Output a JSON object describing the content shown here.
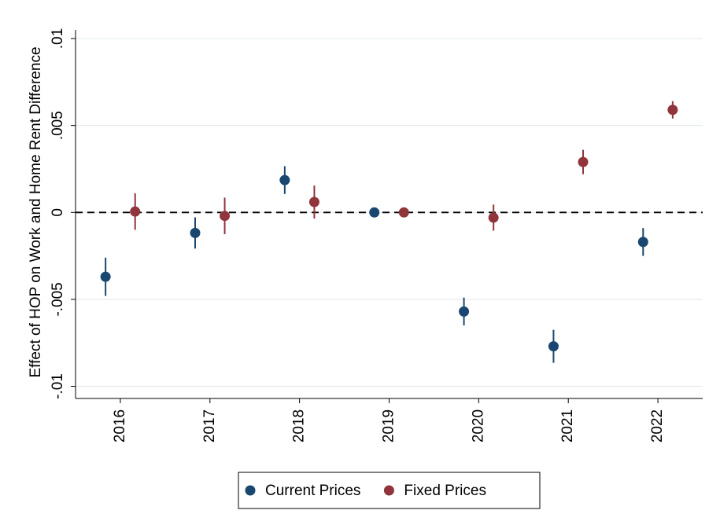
{
  "chart_data": {
    "type": "coefplot",
    "y_label": "Effect of HOP on Work and Home Rent Difference",
    "categories": [
      "2016",
      "2017",
      "2018",
      "2019",
      "2020",
      "2021",
      "2022"
    ],
    "series": [
      {
        "name": "Current Prices",
        "color": "#1a476f",
        "values": [
          -0.0037,
          -0.00118,
          0.00186,
          0,
          -0.0057,
          -0.0077,
          -0.0017
        ],
        "errors": [
          0.0011,
          0.0009,
          0.0008,
          0,
          0.0008,
          0.00095,
          0.0008
        ]
      },
      {
        "name": "Fixed Prices",
        "color": "#90353b",
        "values": [
          5e-05,
          -0.0002,
          0.0006,
          0,
          -0.0003,
          0.0029,
          0.0059
        ],
        "errors": [
          0.00105,
          0.00105,
          0.00095,
          0,
          0.00075,
          0.0007,
          0.0005
        ]
      }
    ],
    "ylim": [
      -0.0107,
      0.0105
    ],
    "yticks": [
      {
        "value": -0.01,
        "label": "-.01"
      },
      {
        "value": -0.005,
        "label": "-.005"
      },
      0,
      {
        "value": 0.005,
        "label": ".005"
      },
      {
        "value": 0.01,
        "label": ".01"
      }
    ],
    "hline": 0,
    "grid": true,
    "legend_position": "bottom"
  }
}
